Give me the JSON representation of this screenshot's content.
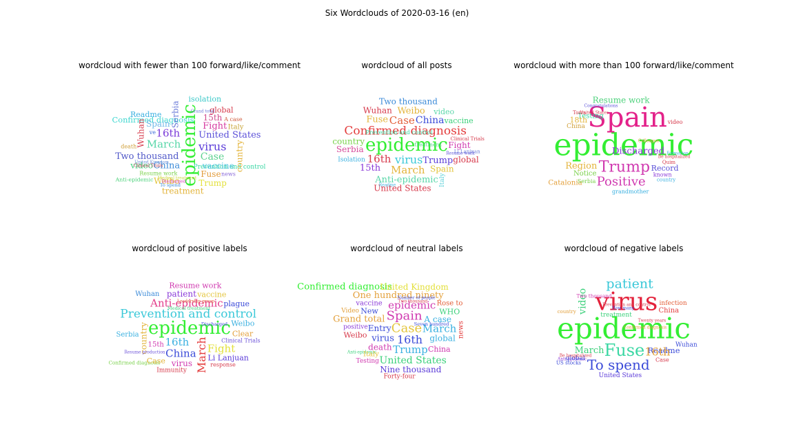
{
  "figure": {
    "title": "Six Wordclouds of 2020-03-16 (en)"
  },
  "panels": [
    {
      "title": "wordcloud with fewer than 100 forward/like/comment",
      "words": [
        {
          "text": "vaccine",
          "color": "#4fc3e0",
          "s": 12
        },
        {
          "text": "Resume work",
          "color": "#7ad14b",
          "s": 8
        },
        {
          "text": "United States",
          "color": "#5a4fd8",
          "s": 13
        },
        {
          "text": "March",
          "color": "#58d6a8",
          "s": 15
        },
        {
          "text": "Spain",
          "color": "#6fb8e8",
          "s": 12
        },
        {
          "text": "Fuse",
          "color": "#e29b3a",
          "s": 12
        },
        {
          "text": "Italy",
          "color": "#c9a63a",
          "s": 10
        },
        {
          "text": "Case",
          "color": "#5bd18e",
          "s": 14
        },
        {
          "text": "15th",
          "color": "#d04a8c",
          "s": 12
        },
        {
          "text": "epidemic",
          "color": "#33ee33",
          "s": 26,
          "rot": -90
        },
        {
          "text": "Prevention and control",
          "color": "#39d7a3",
          "s": 15
        },
        {
          "text": "Wuhan",
          "color": "#d6384a",
          "s": 12,
          "rot": -90
        },
        {
          "text": "news",
          "color": "#8a6ad8",
          "s": 8
        },
        {
          "text": "Clinical Trials",
          "color": "#b83a4f",
          "s": 8
        },
        {
          "text": "country",
          "color": "#e3b43b",
          "s": 12,
          "rot": -90
        },
        {
          "text": "Confirmed diagnosis",
          "color": "#3fd7d0",
          "s": 19
        },
        {
          "text": "Two thousand",
          "color": "#4f57c8",
          "s": 13
        },
        {
          "text": "United Kingdom",
          "color": "#6a8fd8",
          "s": 7
        },
        {
          "text": "Serbia",
          "color": "#6a7ad8",
          "s": 12,
          "rot": -90
        },
        {
          "text": "Discharged",
          "color": "#d03ab0",
          "s": 8
        },
        {
          "text": "Fight",
          "color": "#d63aa0",
          "s": 13
        },
        {
          "text": "16th",
          "color": "#7a3ad8",
          "s": 15
        },
        {
          "text": "Anti-epidemic",
          "color": "#4bd17a",
          "s": 13
        },
        {
          "text": "A case",
          "color": "#d05a3a",
          "s": 8
        },
        {
          "text": "Weibo",
          "color": "#e3c43b",
          "s": 12
        },
        {
          "text": "Medical treatment",
          "color": "#c8d83a",
          "s": 7
        },
        {
          "text": "treatment",
          "color": "#e3b43b",
          "s": 12
        },
        {
          "text": "Readme",
          "color": "#3ab0e0",
          "s": 11
        },
        {
          "text": "China",
          "color": "#3a8ad8",
          "s": 13
        },
        {
          "text": "global",
          "color": "#d6384a",
          "s": 11
        },
        {
          "text": "video",
          "color": "#3ad07a",
          "s": 12
        },
        {
          "text": "virus",
          "color": "#5a3ad8",
          "s": 16
        },
        {
          "text": "Trump",
          "color": "#e3e03b",
          "s": 12
        },
        {
          "text": "isolation",
          "color": "#3ac8c8",
          "s": 11
        },
        {
          "text": "Grand total",
          "color": "#6a7ad8",
          "s": 7
        },
        {
          "text": "To spend",
          "color": "#3a8ad8",
          "s": 11
        },
        {
          "text": "death",
          "color": "#d0a03a",
          "s": 8
        },
        {
          "text": "ve",
          "color": "#3a6ad8",
          "s": 8
        }
      ]
    },
    {
      "title": "wordcloud of all posts",
      "words": [
        {
          "text": "Trump",
          "color": "#5a3ad8",
          "s": 13
        },
        {
          "text": "Spain",
          "color": "#e3c43b",
          "s": 12
        },
        {
          "text": "country",
          "color": "#7ad14b",
          "s": 12
        },
        {
          "text": "March",
          "color": "#e3b43b",
          "s": 15
        },
        {
          "text": "15th",
          "color": "#8a3ad8",
          "s": 13
        },
        {
          "text": "Weibo",
          "color": "#e3b43b",
          "s": 13
        },
        {
          "text": "Resume work",
          "color": "#5a4fd8",
          "s": 9
        },
        {
          "text": "video",
          "color": "#58d6a8",
          "s": 11
        },
        {
          "text": "epidemic",
          "color": "#33ee33",
          "s": 26
        },
        {
          "text": "Fight",
          "color": "#d03ab0",
          "s": 12
        },
        {
          "text": "Isolation",
          "color": "#3ab0e0",
          "s": 9
        },
        {
          "text": "16th",
          "color": "#d6384a",
          "s": 15
        },
        {
          "text": "Fuse",
          "color": "#e3b43b",
          "s": 13
        },
        {
          "text": "Anti-epidemic",
          "color": "#58d6a8",
          "s": 13
        },
        {
          "text": "Wuhan",
          "color": "#d6384a",
          "s": 12
        },
        {
          "text": "global",
          "color": "#d6384a",
          "s": 12
        },
        {
          "text": "Readme",
          "color": "#3ab0e0",
          "s": 9
        },
        {
          "text": "Confirmed diagnosis",
          "color": "#e33b3b",
          "s": 17
        },
        {
          "text": "treatment",
          "color": "#4bd17a",
          "s": 13,
          "rot": -90
        },
        {
          "text": "China",
          "color": "#3a4ad8",
          "s": 14
        },
        {
          "text": "virus",
          "color": "#3ac8d8",
          "s": 16
        },
        {
          "text": "vaccine",
          "color": "#3ad07a",
          "s": 11
        },
        {
          "text": "Case",
          "color": "#e3603b",
          "s": 15
        },
        {
          "text": "Serbia",
          "color": "#d64a9a",
          "s": 12
        },
        {
          "text": "Prevention and control",
          "color": "#3ad7a3",
          "s": 14
        },
        {
          "text": "United States",
          "color": "#d6384a",
          "s": 12
        },
        {
          "text": "Two thousand",
          "color": "#3a8ad8",
          "s": 12
        },
        {
          "text": "Italy",
          "color": "#5ad0d8",
          "s": 9,
          "rot": -90
        },
        {
          "text": "Clinical Trials",
          "color": "#d6384a",
          "s": 7
        },
        {
          "text": "Li Lanjuan",
          "color": "#6a7ad8",
          "s": 7
        }
      ]
    },
    {
      "title": "wordcloud with more than 100 forward/like/comment",
      "words": [
        {
          "text": "Positive",
          "color": "#d03ab0",
          "s": 18
        },
        {
          "text": "known",
          "color": "#8a3ad8",
          "s": 8
        },
        {
          "text": "Spain",
          "color": "#e3228a",
          "s": 40
        },
        {
          "text": "Catalonia",
          "color": "#e3a03b",
          "s": 17
        },
        {
          "text": "Trump",
          "color": "#d03ab0",
          "s": 22
        },
        {
          "text": "Testing",
          "color": "#3ad7a3",
          "s": 17
        },
        {
          "text": "Record",
          "color": "#5a4fd8",
          "s": 11
        },
        {
          "text": "United States",
          "color": "#d6384a",
          "s": 10
        },
        {
          "text": "epidemic",
          "color": "#33ee33",
          "s": 44
        },
        {
          "text": "China",
          "color": "#d0a03a",
          "s": 9
        },
        {
          "text": "18th",
          "color": "#e3b43b",
          "s": 11
        },
        {
          "text": "Discharged",
          "color": "#8a3ad8",
          "s": 22
        },
        {
          "text": "Region",
          "color": "#e3b43b",
          "s": 13
        },
        {
          "text": "Resume work",
          "color": "#4bd17a",
          "s": 12
        },
        {
          "text": "Notice",
          "color": "#7ad14b",
          "s": 10
        },
        {
          "text": "video",
          "color": "#d6384a",
          "s": 8
        },
        {
          "text": "Serbia",
          "color": "#7ad14b",
          "s": 8
        },
        {
          "text": "grandmother",
          "color": "#3ab0e0",
          "s": 8
        },
        {
          "text": "Be hospitalized",
          "color": "#d6384a",
          "s": 7
        },
        {
          "text": "Quim",
          "color": "#d6384a",
          "s": 7
        },
        {
          "text": "Congratulations",
          "color": "#5a4fd8",
          "s": 7
        },
        {
          "text": "country",
          "color": "#3ab0e0",
          "s": 7
        },
        {
          "text": "Torra",
          "color": "#d6384a",
          "s": 7
        },
        {
          "text": "Colleague",
          "color": "#e3a03b",
          "s": 8,
          "rot": -90
        },
        {
          "text": "Formation",
          "color": "#3ab0e0",
          "s": 7,
          "rot": -90
        }
      ]
    },
    {
      "title": "wordcloud of positive labels",
      "words": [
        {
          "text": "March",
          "color": "#e33b3b",
          "s": 16,
          "rot": -90
        },
        {
          "text": "country",
          "color": "#e3b43b",
          "s": 12,
          "rot": -90
        },
        {
          "text": "patient",
          "color": "#8a3ad8",
          "s": 12
        },
        {
          "text": "virus",
          "color": "#d03ab0",
          "s": 12
        },
        {
          "text": "16th",
          "color": "#3ab0e0",
          "s": 15
        },
        {
          "text": "vaccine",
          "color": "#e3c43b",
          "s": 11
        },
        {
          "text": "Resume work",
          "color": "#d03ab0",
          "s": 11
        },
        {
          "text": "Clinical Trials",
          "color": "#6a4fd8",
          "s": 8
        },
        {
          "text": "Anti-epidemic",
          "color": "#e33b8a",
          "s": 15
        },
        {
          "text": "Resume production",
          "color": "#6a4fd8",
          "s": 8
        },
        {
          "text": "Clear",
          "color": "#e3a03b",
          "s": 11
        },
        {
          "text": "response",
          "color": "#d6384a",
          "s": 8
        },
        {
          "text": "Prevention and control",
          "color": "#3ac8d8",
          "s": 17
        },
        {
          "text": "Li Lanjuan",
          "color": "#5a3ad8",
          "s": 11
        },
        {
          "text": "Confirmed diagnosis",
          "color": "#7ad14b",
          "s": 12
        },
        {
          "text": "15th",
          "color": "#d03ab0",
          "s": 10
        },
        {
          "text": "Case",
          "color": "#e3b43b",
          "s": 11
        },
        {
          "text": "Immunity",
          "color": "#d6384a",
          "s": 9
        },
        {
          "text": "epidemic",
          "color": "#33ee33",
          "s": 26
        },
        {
          "text": "Serbia",
          "color": "#3ab0e0",
          "s": 10
        },
        {
          "text": "plague",
          "color": "#3a4ad8",
          "s": 11
        },
        {
          "text": "China",
          "color": "#3a4ad8",
          "s": 15
        },
        {
          "text": "Fight",
          "color": "#e3e03b",
          "s": 15
        },
        {
          "text": "Medical treatment",
          "color": "#3ad07a",
          "s": 11
        },
        {
          "text": "Wuhan",
          "color": "#3a8ad8",
          "s": 10
        },
        {
          "text": "Discharged",
          "color": "#3a4ad8",
          "s": 11
        },
        {
          "text": "Weibo",
          "color": "#3ab0e0",
          "s": 11
        },
        {
          "text": "Leadership group",
          "color": "#e3603b",
          "s": 7,
          "rot": -90
        }
      ]
    },
    {
      "title": "wordcloud of neutral labels",
      "words": [
        {
          "text": "Two thousand",
          "color": "#d6384a",
          "s": 9
        },
        {
          "text": "United Kingdom",
          "color": "#e3e03b",
          "s": 12
        },
        {
          "text": "United States",
          "color": "#3ad07a",
          "s": 14
        },
        {
          "text": "vaccine",
          "color": "#8a3ad8",
          "s": 10
        },
        {
          "text": "One hundred ninety",
          "color": "#e3a03b",
          "s": 13
        },
        {
          "text": "virus",
          "color": "#3a4ad8",
          "s": 13
        },
        {
          "text": "New",
          "color": "#3a4ad8",
          "s": 11
        },
        {
          "text": "Number of people",
          "color": "#3a4ad8",
          "s": 8
        },
        {
          "text": "16th",
          "color": "#3a4ad8",
          "s": 16
        },
        {
          "text": "news",
          "color": "#e33b3b",
          "s": 10,
          "rot": -90
        },
        {
          "text": "Case",
          "color": "#e3c43b",
          "s": 18
        },
        {
          "text": "Entry",
          "color": "#3a4ad8",
          "s": 12
        },
        {
          "text": "Trump",
          "color": "#3ab0e0",
          "s": 15
        },
        {
          "text": "Forty-four",
          "color": "#d6384a",
          "s": 9
        },
        {
          "text": "Testing",
          "color": "#d03ab0",
          "s": 9
        },
        {
          "text": "Rose to",
          "color": "#e3603b",
          "s": 10
        },
        {
          "text": "Anti-epidemic",
          "color": "#3ad07a",
          "s": 10
        },
        {
          "text": "Italy",
          "color": "#e3c43b",
          "s": 10
        },
        {
          "text": "Confirmed diagnosis",
          "color": "#33ee33",
          "s": 22
        },
        {
          "text": "global",
          "color": "#3ab0e0",
          "s": 12
        },
        {
          "text": "Spain",
          "color": "#d03ab0",
          "s": 18
        },
        {
          "text": "March",
          "color": "#3ab0e0",
          "s": 15
        },
        {
          "text": "Seven hundred",
          "color": "#3a4ad8",
          "s": 11
        },
        {
          "text": "positive",
          "color": "#8a3ad8",
          "s": 9
        },
        {
          "text": "WHO",
          "color": "#3ad07a",
          "s": 11
        },
        {
          "text": "epidemic",
          "color": "#d03ab0",
          "s": 15
        },
        {
          "text": "Grand total",
          "color": "#e3a03b",
          "s": 13
        },
        {
          "text": "A case",
          "color": "#3ab0e0",
          "s": 12
        },
        {
          "text": "Weibo",
          "color": "#d6384a",
          "s": 11
        },
        {
          "text": "Nine thousand",
          "color": "#5a3ad8",
          "s": 12
        },
        {
          "text": "death",
          "color": "#d03ab0",
          "s": 12
        },
        {
          "text": "China",
          "color": "#d03ab0",
          "s": 11
        },
        {
          "text": "Video",
          "color": "#e3a03b",
          "s": 9
        }
      ]
    },
    {
      "title": "wordcloud of negative labels",
      "words": [
        {
          "text": "16th",
          "color": "#e3a03b",
          "s": 16
        },
        {
          "text": "Be hospitalized",
          "color": "#d6384a",
          "s": 8
        },
        {
          "text": "United States",
          "color": "#5a3ad8",
          "s": 9
        },
        {
          "text": "Anti-epidemic",
          "color": "#8a3ad8",
          "s": 9
        },
        {
          "text": "virus",
          "color": "#e3223b",
          "s": 36
        },
        {
          "text": "March",
          "color": "#3ad07a",
          "s": 13
        },
        {
          "text": "Readme",
          "color": "#3a4ad8",
          "s": 19
        },
        {
          "text": "patient",
          "color": "#3ac8d8",
          "s": 19
        },
        {
          "text": "China",
          "color": "#e33b3b",
          "s": 10
        },
        {
          "text": "treatment",
          "color": "#3ad07a",
          "s": 15
        },
        {
          "text": "US stocks",
          "color": "#3a4ad8",
          "s": 12
        },
        {
          "text": "epidemic",
          "color": "#33ee33",
          "s": 42
        },
        {
          "text": "infection",
          "color": "#e3603b",
          "s": 9
        },
        {
          "text": "How many",
          "color": "#3a4ad8",
          "s": 9
        },
        {
          "text": "To spend",
          "color": "#3a4ad8",
          "s": 20
        },
        {
          "text": "Fuse",
          "color": "#3ad7a3",
          "s": 24
        },
        {
          "text": "Confirmed diagnosis",
          "color": "#e3a03b",
          "s": 10
        },
        {
          "text": "Wuhan",
          "color": "#3a4ad8",
          "s": 9
        },
        {
          "text": "global",
          "color": "#3a4ad8",
          "s": 9
        },
        {
          "text": "Two thousand",
          "color": "#d03ab0",
          "s": 12
        },
        {
          "text": "video",
          "color": "#3ad07a",
          "s": 14,
          "rot": -90
        },
        {
          "text": "Prevention and control",
          "color": "#d6384a",
          "s": 7
        },
        {
          "text": "Twenty years",
          "color": "#d6384a",
          "s": 7
        },
        {
          "text": "Case",
          "color": "#d6384a",
          "s": 8
        },
        {
          "text": "country",
          "color": "#e3a03b",
          "s": 7
        }
      ]
    }
  ]
}
